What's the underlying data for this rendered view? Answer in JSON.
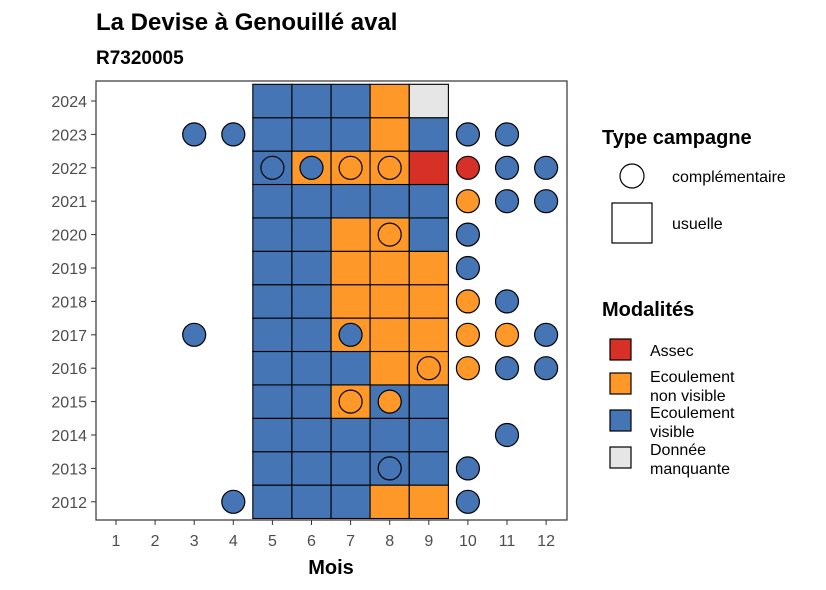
{
  "chart_data": {
    "type": "heatmap",
    "title": "La Devise à Genouillé aval",
    "subtitle": "R7320005",
    "xlabel": "Mois",
    "ylabel": "",
    "x_ticks": [
      "1",
      "2",
      "3",
      "4",
      "5",
      "6",
      "7",
      "8",
      "9",
      "10",
      "11",
      "12"
    ],
    "y_ticks": [
      "2012",
      "2013",
      "2014",
      "2015",
      "2016",
      "2017",
      "2018",
      "2019",
      "2020",
      "2021",
      "2022",
      "2023",
      "2024"
    ],
    "grid": false,
    "legend_position": "right",
    "legend_type": {
      "title": "Type campagne",
      "items": [
        {
          "label": "complémentaire",
          "shape": "circle"
        },
        {
          "label": "usuelle",
          "shape": "square"
        }
      ]
    },
    "legend_modalites": {
      "title": "Modalités",
      "items": [
        {
          "key": "assec",
          "line1": "Assec",
          "line2": "",
          "color": "#d73027"
        },
        {
          "key": "ecoulement_non_visible",
          "line1": "Ecoulement",
          "line2": "non visible",
          "color": "#fe9929"
        },
        {
          "key": "ecoulement_visible",
          "line1": "Ecoulement",
          "line2": "visible",
          "color": "#4575b4"
        },
        {
          "key": "donnee_manquante",
          "line1": "Donnée",
          "line2": "manquante",
          "color": "#e6e6e6"
        }
      ]
    },
    "usuelle": [
      {
        "year": 2012,
        "months": [
          5,
          6,
          7,
          8,
          9
        ],
        "values": [
          "V",
          "V",
          "V",
          "N",
          "N"
        ]
      },
      {
        "year": 2013,
        "months": [
          5,
          6,
          7,
          8,
          9
        ],
        "values": [
          "V",
          "V",
          "V",
          "V",
          "V"
        ]
      },
      {
        "year": 2014,
        "months": [
          5,
          6,
          7,
          8,
          9
        ],
        "values": [
          "V",
          "V",
          "V",
          "V",
          "V"
        ]
      },
      {
        "year": 2015,
        "months": [
          5,
          6,
          7,
          8,
          9
        ],
        "values": [
          "V",
          "V",
          "N",
          "V",
          "V"
        ]
      },
      {
        "year": 2016,
        "months": [
          5,
          6,
          7,
          8,
          9
        ],
        "values": [
          "V",
          "V",
          "V",
          "N",
          "N"
        ]
      },
      {
        "year": 2017,
        "months": [
          5,
          6,
          7,
          8,
          9
        ],
        "values": [
          "V",
          "V",
          "N",
          "N",
          "N"
        ]
      },
      {
        "year": 2018,
        "months": [
          5,
          6,
          7,
          8,
          9
        ],
        "values": [
          "V",
          "V",
          "N",
          "N",
          "N"
        ]
      },
      {
        "year": 2019,
        "months": [
          5,
          6,
          7,
          8,
          9
        ],
        "values": [
          "V",
          "V",
          "N",
          "N",
          "N"
        ]
      },
      {
        "year": 2020,
        "months": [
          5,
          6,
          7,
          8,
          9
        ],
        "values": [
          "V",
          "V",
          "N",
          "N",
          "V"
        ]
      },
      {
        "year": 2021,
        "months": [
          5,
          6,
          7,
          8,
          9
        ],
        "values": [
          "V",
          "V",
          "V",
          "V",
          "V"
        ]
      },
      {
        "year": 2022,
        "months": [
          5,
          6,
          7,
          8,
          9
        ],
        "values": [
          "V",
          "N",
          "N",
          "N",
          "A"
        ]
      },
      {
        "year": 2023,
        "months": [
          5,
          6,
          7,
          8,
          9
        ],
        "values": [
          "V",
          "V",
          "V",
          "N",
          "V"
        ]
      },
      {
        "year": 2024,
        "months": [
          5,
          6,
          7,
          8,
          9
        ],
        "values": [
          "V",
          "V",
          "V",
          "N",
          "M"
        ]
      }
    ],
    "complementaire": [
      {
        "year": 2012,
        "month": 4,
        "value": "V"
      },
      {
        "year": 2012,
        "month": 10,
        "value": "V"
      },
      {
        "year": 2013,
        "month": 8,
        "value": "V"
      },
      {
        "year": 2013,
        "month": 10,
        "value": "V"
      },
      {
        "year": 2014,
        "month": 11,
        "value": "V"
      },
      {
        "year": 2015,
        "month": 7,
        "value": "N"
      },
      {
        "year": 2015,
        "month": 8,
        "value": "N"
      },
      {
        "year": 2016,
        "month": 9,
        "value": "N"
      },
      {
        "year": 2016,
        "month": 10,
        "value": "N"
      },
      {
        "year": 2016,
        "month": 11,
        "value": "V"
      },
      {
        "year": 2016,
        "month": 12,
        "value": "V"
      },
      {
        "year": 2017,
        "month": 3,
        "value": "V"
      },
      {
        "year": 2017,
        "month": 7,
        "value": "V"
      },
      {
        "year": 2017,
        "month": 10,
        "value": "N"
      },
      {
        "year": 2017,
        "month": 11,
        "value": "N"
      },
      {
        "year": 2017,
        "month": 12,
        "value": "V"
      },
      {
        "year": 2018,
        "month": 10,
        "value": "N"
      },
      {
        "year": 2018,
        "month": 11,
        "value": "V"
      },
      {
        "year": 2019,
        "month": 10,
        "value": "V"
      },
      {
        "year": 2020,
        "month": 8,
        "value": "N"
      },
      {
        "year": 2020,
        "month": 10,
        "value": "V"
      },
      {
        "year": 2021,
        "month": 10,
        "value": "N"
      },
      {
        "year": 2021,
        "month": 11,
        "value": "V"
      },
      {
        "year": 2021,
        "month": 12,
        "value": "V"
      },
      {
        "year": 2022,
        "month": 5,
        "value": "V"
      },
      {
        "year": 2022,
        "month": 6,
        "value": "V"
      },
      {
        "year": 2022,
        "month": 7,
        "value": "N"
      },
      {
        "year": 2022,
        "month": 8,
        "value": "N"
      },
      {
        "year": 2022,
        "month": 10,
        "value": "A"
      },
      {
        "year": 2022,
        "month": 11,
        "value": "V"
      },
      {
        "year": 2022,
        "month": 12,
        "value": "V"
      },
      {
        "year": 2023,
        "month": 3,
        "value": "V"
      },
      {
        "year": 2023,
        "month": 4,
        "value": "V"
      },
      {
        "year": 2023,
        "month": 10,
        "value": "V"
      },
      {
        "year": 2023,
        "month": 11,
        "value": "V"
      }
    ],
    "value_codes": {
      "A": "assec",
      "N": "ecoulement_non_visible",
      "V": "ecoulement_visible",
      "M": "donnee_manquante"
    }
  }
}
